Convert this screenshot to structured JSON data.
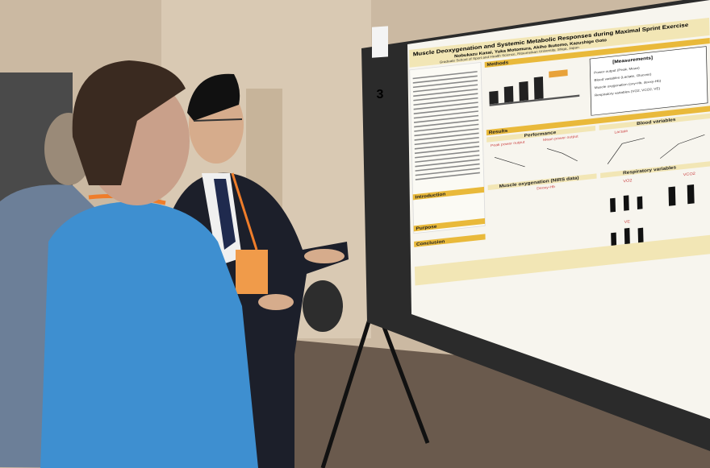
{
  "board_number": "3",
  "poster": {
    "title": "Muscle Deoxygenation and Systemic Metabolic Responses during Maximal Sprint Exercise",
    "authors": "Nobukazu Kasai, Yuka Motomura, Akiho Ikutomo, Kazushige Goto",
    "affiliation": "Graduate School of Sport and Health Science, Ritsumeikan University, Shiga, Japan",
    "sections": {
      "methods": "Methods",
      "results": "Results",
      "introduction": "Introduction",
      "purpose": "Purpose",
      "conclusion": "Conclusion"
    },
    "measurements_title": "[Measurements]",
    "measurements": [
      "Power output (Peak, Mean)",
      "Blood variables (Lactate, Glucose)",
      "Muscle oxygenation (oxy-Hb, deoxy-Hb)",
      "Respiratory variables (VO2, VCO2, VE)"
    ],
    "panels": {
      "performance": "Performance",
      "blood": "Blood variables",
      "peak": "Peak power output",
      "mean": "Mean power output",
      "lactate": "Lactate",
      "muscle": "Muscle oxygenation (NIRS data)",
      "respiratory": "Respiratory variables",
      "deoxy": "Deoxy-Hb",
      "vo2": "VO2",
      "vco2": "VCO2",
      "ve": "VE"
    }
  }
}
